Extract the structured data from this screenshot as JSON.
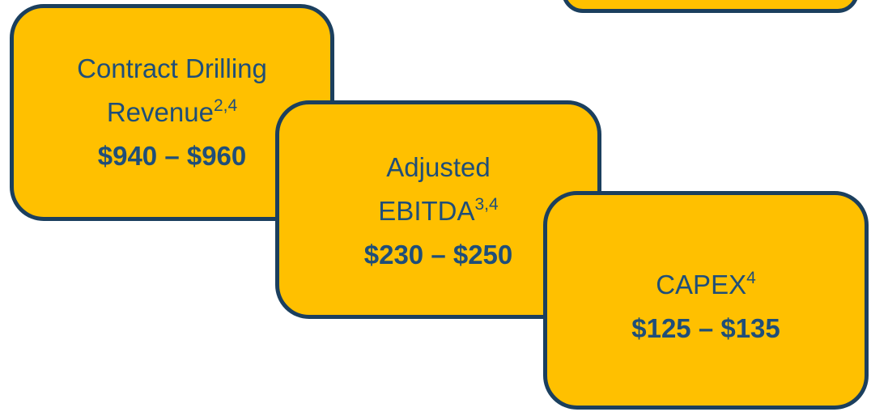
{
  "boxes": [
    {
      "label_lines": [
        "Contract Drilling",
        "Revenue"
      ],
      "superscript": "2,4",
      "value": "$940 – $960"
    },
    {
      "label_lines": [
        "Adjusted",
        "EBITDA"
      ],
      "superscript": "3,4",
      "value": "$230 – $250"
    },
    {
      "label_lines": [
        "CAPEX"
      ],
      "superscript": "4",
      "value": "$125 – $135"
    }
  ]
}
